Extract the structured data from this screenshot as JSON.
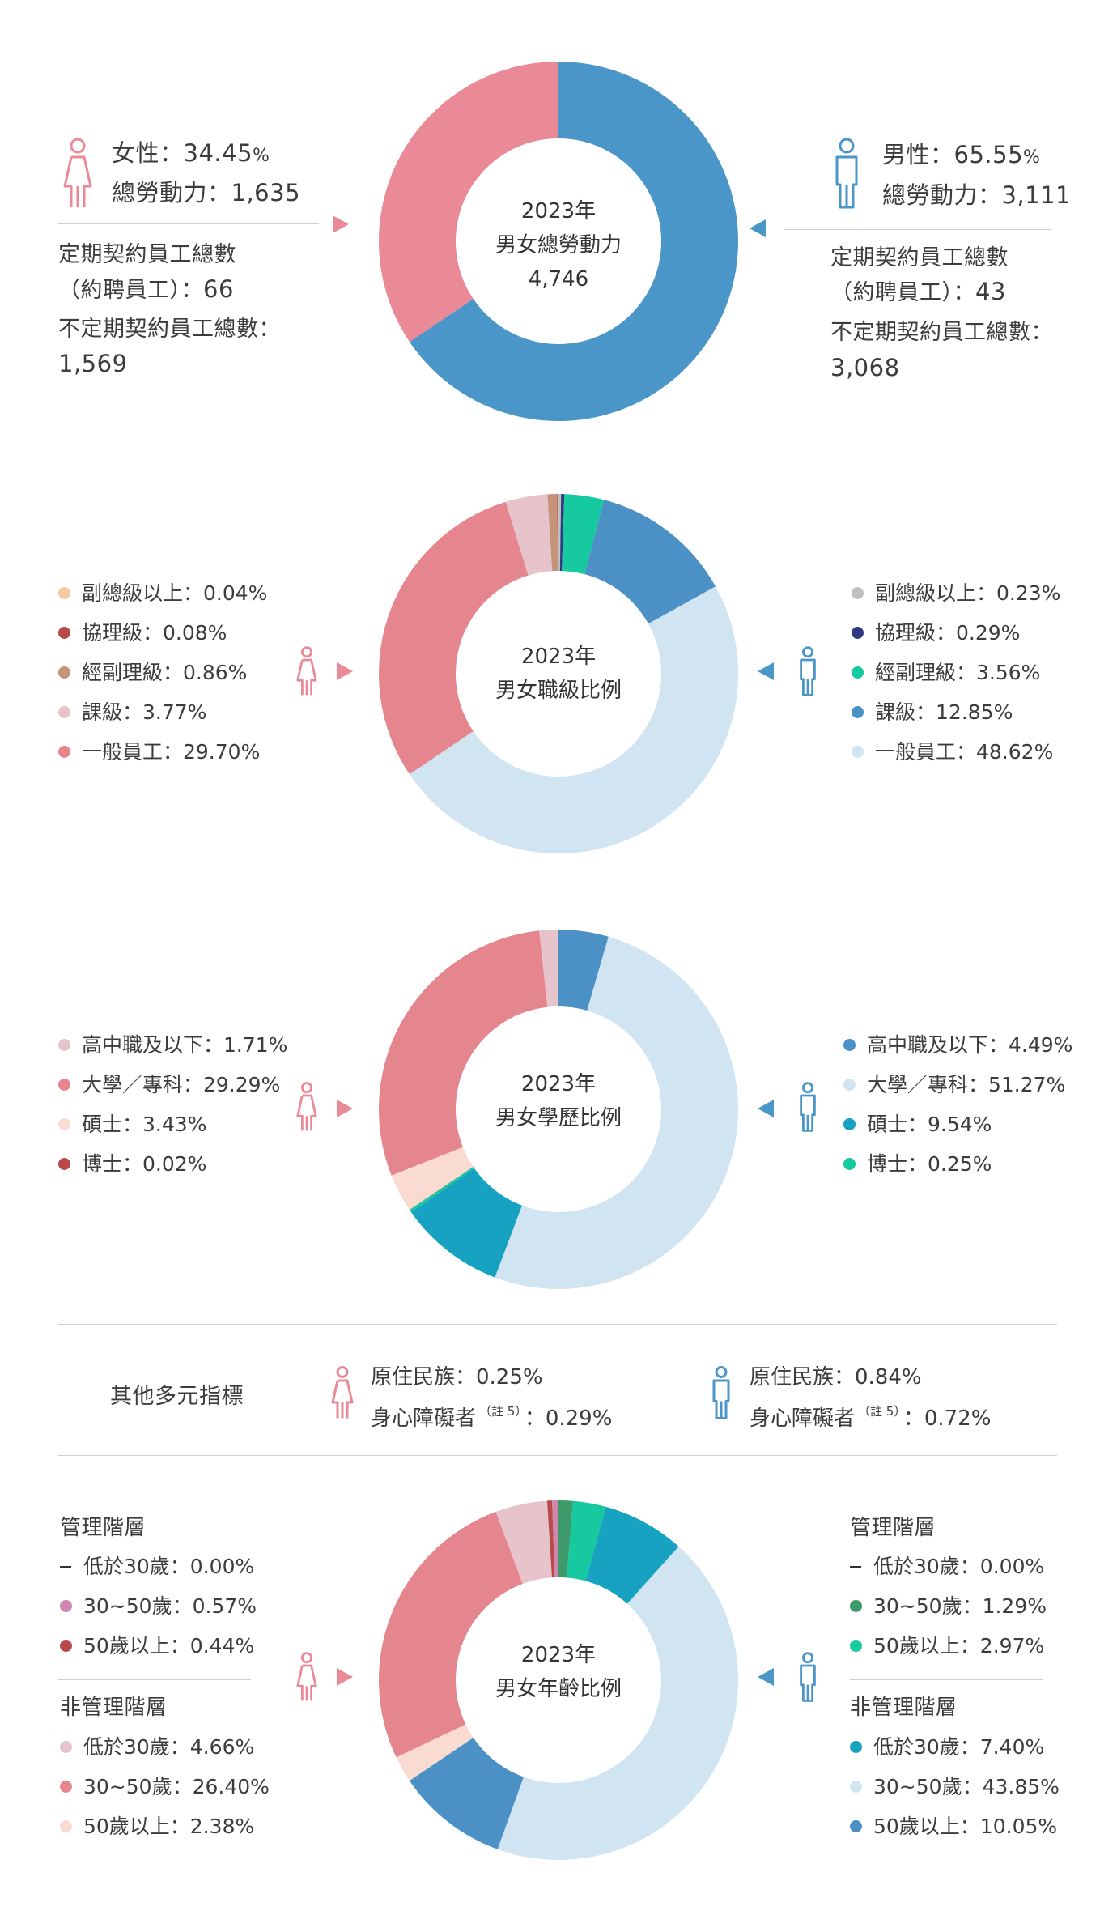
{
  "colors": {
    "female": "#e98a96",
    "male": "#4b96c8"
  },
  "icons": {
    "female": "female-person-icon",
    "male": "male-person-icon",
    "arrow_right": "arrow-right-icon",
    "arrow_left": "arrow-left-icon"
  },
  "section1": {
    "center": [
      "2023年",
      "男女總勞動力",
      "4,746"
    ],
    "female": {
      "ratio_label": "女性：",
      "ratio_value": "34.45",
      "pct": "%",
      "labor_label": "總勞動力：",
      "labor_value": "1,635",
      "fixed_label1": "定期契約員工總數",
      "fixed_label2": "（約聘員工）：",
      "fixed_value": "66",
      "unfixed_label": "不定期契約員工總數：",
      "unfixed_value": "1,569"
    },
    "male": {
      "ratio_label": "男性：",
      "ratio_value": "65.55",
      "pct": "%",
      "labor_label": "總勞動力：",
      "labor_value": "3,111",
      "fixed_label1": "定期契約員工總數",
      "fixed_label2": "（約聘員工）：",
      "fixed_value": "43",
      "unfixed_label": "不定期契約員工總數：",
      "unfixed_value": "3,068"
    }
  },
  "section2": {
    "center": [
      "2023年",
      "男女職級比例"
    ],
    "female": [
      {
        "label": "副總級以上：0.04%",
        "color": "#f7c9a0"
      },
      {
        "label": "協理級：0.08%",
        "color": "#b94a4a"
      },
      {
        "label": "經副理級：0.86%",
        "color": "#c59478"
      },
      {
        "label": "課級：3.77%",
        "color": "#e7c3cb"
      },
      {
        "label": "一般員工：29.70%",
        "color": "#e5868f"
      }
    ],
    "male": [
      {
        "label": "副總級以上：0.23%",
        "color": "#c0c0c0"
      },
      {
        "label": "協理級：0.29%",
        "color": "#2f3a83"
      },
      {
        "label": "經副理級：3.56%",
        "color": "#17c99e"
      },
      {
        "label": "課級：12.85%",
        "color": "#4b91c6"
      },
      {
        "label": "一般員工：48.62%",
        "color": "#d1e4f2"
      }
    ]
  },
  "section3": {
    "center": [
      "2023年",
      "男女學歷比例"
    ],
    "female": [
      {
        "label": "高中職及以下：1.71%",
        "color": "#e7c3cb"
      },
      {
        "label": "大學／專科：29.29%",
        "color": "#e5868f"
      },
      {
        "label": "碩士：3.43%",
        "color": "#fadbd2"
      },
      {
        "label": "博士：0.02%",
        "color": "#b94a4a"
      }
    ],
    "male": [
      {
        "label": "高中職及以下：4.49%",
        "color": "#4b91c6"
      },
      {
        "label": "大學／專科：51.27%",
        "color": "#d1e4f2"
      },
      {
        "label": "碩士：9.54%",
        "color": "#16a2c0"
      },
      {
        "label": "博士：0.25%",
        "color": "#17c99e"
      }
    ]
  },
  "diversity": {
    "title": "其他多元指標",
    "female": {
      "indigenous": "原住民族：0.25%",
      "disabled_label": "身心障礙者",
      "note": "（註 5）",
      "disabled_value": "：0.29%"
    },
    "male": {
      "indigenous": "原住民族：0.84%",
      "disabled_label": "身心障礙者",
      "note": "（註 5）",
      "disabled_value": "：0.72%"
    }
  },
  "section4": {
    "center": [
      "2023年",
      "男女年齡比例"
    ],
    "female": {
      "mgmt_title": "管理階層",
      "mgmt": [
        {
          "label": "低於30歲：0.00%",
          "color": "#333333",
          "dash": true
        },
        {
          "label": "30~50歲：0.57%",
          "color": "#cf86b0"
        },
        {
          "label": "50歲以上：0.44%",
          "color": "#b94a4a"
        }
      ],
      "non_title": "非管理階層",
      "non": [
        {
          "label": "低於30歲：4.66%",
          "color": "#e7c3cb"
        },
        {
          "label": "30~50歲：26.40%",
          "color": "#e5868f"
        },
        {
          "label": "50歲以上：2.38%",
          "color": "#fadbd2"
        }
      ]
    },
    "male": {
      "mgmt_title": "管理階層",
      "mgmt": [
        {
          "label": "低於30歲：0.00%",
          "color": "#333333",
          "dash": true
        },
        {
          "label": "30~50歲：1.29%",
          "color": "#3e9a6a"
        },
        {
          "label": "50歲以上：2.97%",
          "color": "#17c99e"
        }
      ],
      "non_title": "非管理階層",
      "non": [
        {
          "label": "低於30歲：7.40%",
          "color": "#16a2c0"
        },
        {
          "label": "30~50歲：43.85%",
          "color": "#d1e4f2"
        },
        {
          "label": "50歲以上：10.05%",
          "color": "#4b91c6"
        }
      ]
    }
  },
  "chart_data": [
    {
      "type": "pie",
      "title": "2023年 男女總勞動力",
      "total": "4,746",
      "series": [
        {
          "name": "男性",
          "values": [
            65.55
          ],
          "color": "#4b96c8"
        },
        {
          "name": "女性",
          "values": [
            34.45
          ],
          "color": "#e98a96"
        }
      ]
    },
    {
      "type": "pie",
      "title": "2023年 男女職級比例",
      "slices": [
        {
          "label": "男性 副總級以上",
          "value": 0.23,
          "color": "#c0c0c0"
        },
        {
          "label": "男性 協理級",
          "value": 0.29,
          "color": "#2f3a83"
        },
        {
          "label": "男性 經副理級",
          "value": 3.56,
          "color": "#17c99e"
        },
        {
          "label": "男性 課級",
          "value": 12.85,
          "color": "#4b91c6"
        },
        {
          "label": "男性 一般員工",
          "value": 48.62,
          "color": "#d1e4f2"
        },
        {
          "label": "女性 一般員工",
          "value": 29.7,
          "color": "#e5868f"
        },
        {
          "label": "女性 課級",
          "value": 3.77,
          "color": "#e7c3cb"
        },
        {
          "label": "女性 經副理級",
          "value": 0.86,
          "color": "#c59478"
        },
        {
          "label": "女性 協理級",
          "value": 0.08,
          "color": "#b94a4a"
        },
        {
          "label": "女性 副總級以上",
          "value": 0.04,
          "color": "#f7c9a0"
        }
      ]
    },
    {
      "type": "pie",
      "title": "2023年 男女學歷比例",
      "slices": [
        {
          "label": "男性 高中職及以下",
          "value": 4.49,
          "color": "#4b91c6"
        },
        {
          "label": "男性 大學/專科",
          "value": 51.27,
          "color": "#d1e4f2"
        },
        {
          "label": "男性 碩士",
          "value": 9.54,
          "color": "#16a2c0"
        },
        {
          "label": "男性 博士",
          "value": 0.25,
          "color": "#17c99e"
        },
        {
          "label": "女性 博士",
          "value": 0.02,
          "color": "#b94a4a"
        },
        {
          "label": "女性 碩士",
          "value": 3.43,
          "color": "#fadbd2"
        },
        {
          "label": "女性 大學/專科",
          "value": 29.29,
          "color": "#e5868f"
        },
        {
          "label": "女性 高中職及以下",
          "value": 1.71,
          "color": "#e7c3cb"
        }
      ]
    },
    {
      "type": "pie",
      "title": "2023年 男女年齡比例",
      "slices": [
        {
          "label": "男性 管理階層 30~50歲",
          "value": 1.29,
          "color": "#3e9a6a"
        },
        {
          "label": "男性 管理階層 50歲以上",
          "value": 2.97,
          "color": "#17c99e"
        },
        {
          "label": "男性 非管理階層 低於30歲",
          "value": 7.4,
          "color": "#16a2c0"
        },
        {
          "label": "男性 非管理階層 30~50歲",
          "value": 43.85,
          "color": "#d1e4f2"
        },
        {
          "label": "男性 非管理階層 50歲以上",
          "value": 10.05,
          "color": "#4b91c6"
        },
        {
          "label": "女性 非管理階層 50歲以上",
          "value": 2.38,
          "color": "#fadbd2"
        },
        {
          "label": "女性 非管理階層 30~50歲",
          "value": 26.4,
          "color": "#e5868f"
        },
        {
          "label": "女性 非管理階層 低於30歲",
          "value": 4.66,
          "color": "#e7c3cb"
        },
        {
          "label": "女性 管理階層 50歲以上",
          "value": 0.44,
          "color": "#b94a4a"
        },
        {
          "label": "女性 管理階層 30~50歲",
          "value": 0.57,
          "color": "#cf86b0"
        }
      ]
    }
  ]
}
